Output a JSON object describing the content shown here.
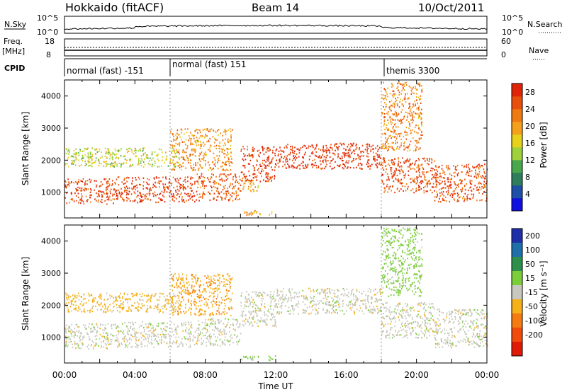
{
  "header": {
    "station": "Hokkaido (fitACF)",
    "beam": "Beam 14",
    "date": "10/Oct/2011"
  },
  "status_panels": {
    "nsky_label": "N.Sky",
    "nsky_ticks": [
      "10^5",
      "10^0"
    ],
    "nsearch_label": "N.Search",
    "nsearch_ticks": [
      "10^5",
      "10^0"
    ],
    "freq_label_1": "Freq.",
    "freq_label_2": "[MHz]",
    "freq_ticks": [
      "18",
      "8"
    ],
    "nave_label": "Nave",
    "nave_ticks": [
      "60",
      "0"
    ],
    "cpid_label": "CPID",
    "cpid_segments": [
      {
        "label": "normal (fast) -151",
        "start_hour": 0.0
      },
      {
        "label": "normal (fast) 151",
        "start_hour": 6.0
      },
      {
        "label": "themis 3300",
        "start_hour": 18.0
      }
    ]
  },
  "chart_data": [
    {
      "type": "heatmap",
      "panel": "power",
      "ylabel": "Slant Range [km]",
      "ylim": [
        200,
        4500
      ],
      "yticks": [
        "1000",
        "2000",
        "3000",
        "4000"
      ],
      "xlim_hours": [
        0,
        24
      ],
      "colorbar": {
        "label": "Power [dB]",
        "ticks": [
          "4",
          "8",
          "12",
          "16",
          "20",
          "24",
          "28"
        ],
        "colors": [
          "#1010e0",
          "#1e50a8",
          "#2e7d5c",
          "#4aa84c",
          "#9fd13a",
          "#e6d21a",
          "#f5a01a",
          "#f07a12",
          "#e84e0c",
          "#e02408"
        ]
      },
      "regions": [
        {
          "t0": 0.0,
          "t1": 3.0,
          "r0": 650,
          "r1": 1450,
          "value": 26
        },
        {
          "t0": 3.0,
          "t1": 7.5,
          "r0": 700,
          "r1": 1500,
          "value": 27
        },
        {
          "t0": 7.5,
          "t1": 10.0,
          "r0": 750,
          "r1": 1600,
          "value": 25
        },
        {
          "t0": 10.0,
          "t1": 12.0,
          "r0": 1350,
          "r1": 2450,
          "value": 27
        },
        {
          "t0": 12.0,
          "t1": 18.0,
          "r0": 1750,
          "r1": 2550,
          "value": 28
        },
        {
          "t0": 18.0,
          "t1": 21.0,
          "r0": 1000,
          "r1": 2100,
          "value": 26
        },
        {
          "t0": 21.0,
          "t1": 24.0,
          "r0": 700,
          "r1": 1900,
          "value": 25
        },
        {
          "t0": 18.0,
          "t1": 20.3,
          "r0": 2300,
          "r1": 4450,
          "value": 22
        },
        {
          "t0": 0.0,
          "t1": 6.5,
          "r0": 1800,
          "r1": 2400,
          "value": 15
        },
        {
          "t0": 10.0,
          "t1": 11.0,
          "r0": 1050,
          "r1": 1400,
          "value": 19
        },
        {
          "t0": 6.0,
          "t1": 9.5,
          "r0": 1700,
          "r1": 3000,
          "value": 21
        },
        {
          "t0": 10.0,
          "t1": 12.0,
          "r0": 300,
          "r1": 450,
          "value": 20
        }
      ]
    },
    {
      "type": "heatmap",
      "panel": "velocity",
      "ylabel": "Slant Range [km]",
      "xlabel": "Time UT",
      "ylim": [
        200,
        4500
      ],
      "yticks": [
        "1000",
        "2000",
        "3000",
        "4000"
      ],
      "xlim_hours": [
        0,
        24
      ],
      "xticks": [
        "00:00",
        "04:00",
        "08:00",
        "12:00",
        "16:00",
        "20:00",
        "00:00"
      ],
      "colorbar": {
        "label": "Velocity [m s⁻¹]",
        "ticks": [
          "200",
          "100",
          "50",
          "15",
          "-15",
          "-50",
          "-100",
          "-200"
        ],
        "colors": [
          "#1f2fa8",
          "#1f6fa8",
          "#2e8f4a",
          "#7ccd3a",
          "#c8c8be",
          "#f5b01a",
          "#f57a12",
          "#f04a0c",
          "#e01a08"
        ]
      },
      "regions": [
        {
          "t0": 0.0,
          "t1": 3.0,
          "r0": 650,
          "r1": 1450,
          "value": 0
        },
        {
          "t0": 3.0,
          "t1": 7.5,
          "r0": 700,
          "r1": 1500,
          "value": 0
        },
        {
          "t0": 7.5,
          "t1": 10.0,
          "r0": 750,
          "r1": 1600,
          "value": 0
        },
        {
          "t0": 10.0,
          "t1": 12.0,
          "r0": 1350,
          "r1": 2450,
          "value": 0
        },
        {
          "t0": 12.0,
          "t1": 18.0,
          "r0": 1750,
          "r1": 2550,
          "value": 0
        },
        {
          "t0": 18.0,
          "t1": 21.0,
          "r0": 1000,
          "r1": 2100,
          "value": 0
        },
        {
          "t0": 21.0,
          "t1": 24.0,
          "r0": 700,
          "r1": 1900,
          "value": 0
        },
        {
          "t0": 18.0,
          "t1": 20.3,
          "r0": 2300,
          "r1": 4450,
          "value": 30
        },
        {
          "t0": 6.0,
          "t1": 9.5,
          "r0": 1700,
          "r1": 3000,
          "value": -40
        },
        {
          "t0": 0.0,
          "t1": 6.5,
          "r0": 1800,
          "r1": 2400,
          "value": -30
        },
        {
          "t0": 10.0,
          "t1": 12.0,
          "r0": 300,
          "r1": 450,
          "value": 30
        }
      ]
    }
  ]
}
